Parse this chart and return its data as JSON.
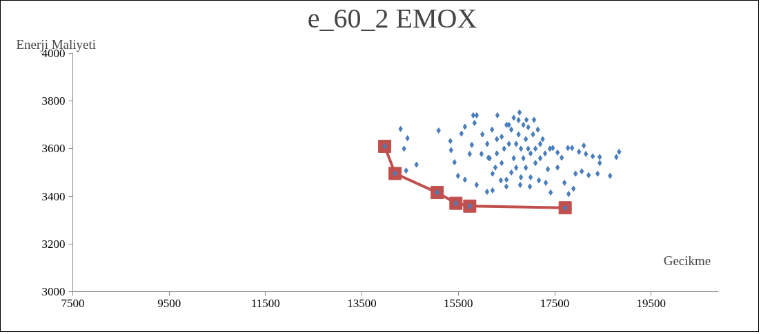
{
  "chart_data": {
    "type": "scatter",
    "title": "e_60_2  EMOX",
    "xlabel": "Gecikme",
    "ylabel": "Enerji Maliyeti",
    "xlim": [
      7500,
      20900
    ],
    "xticks": [
      7500,
      9500,
      11500,
      13500,
      15500,
      17500,
      19500
    ],
    "ylim": [
      3000,
      4000
    ],
    "yticks": [
      3000,
      3200,
      3400,
      3600,
      3800,
      4000
    ],
    "grid": false,
    "series": [
      {
        "type": "line",
        "color": "#c0504d",
        "marker": "square",
        "line_style": "solid",
        "x": [
          13972,
          14187,
          15062,
          15450,
          15737,
          17717
        ],
        "values": [
          3610,
          3496,
          3416,
          3371,
          3359,
          3352
        ]
      },
      {
        "type": "scatter",
        "color": "#4a7ebb",
        "marker": "diamond",
        "x": [
          13972,
          14187,
          15062,
          15450,
          15737,
          17717,
          14302,
          14445,
          14374,
          14632,
          14417,
          15091,
          15335,
          15350,
          15421,
          15493,
          15637,
          15880,
          16096,
          16210,
          15565,
          15637,
          15809,
          15880,
          15837,
          16311,
          16770,
          16914,
          17071,
          15780,
          15737,
          15981,
          16124,
          16268,
          16210,
          16382,
          16497,
          16784,
          16985,
          17172,
          17315,
          17416,
          17358,
          17559,
          17702,
          17788,
          17889,
          17932,
          18061,
          18204,
          18391,
          18649,
          18434,
          18434,
          18290,
          18104,
          18147,
          18779,
          18836,
          18004,
          17860,
          17774,
          17645,
          17559,
          17459,
          16400,
          16500,
          16600,
          16700,
          16800,
          16900,
          17000,
          17100,
          17200,
          16650,
          16750,
          16850,
          16950,
          17050,
          16550,
          16450,
          16300,
          16200,
          16100,
          16000,
          17300,
          17400,
          16700,
          16900,
          17100,
          16800,
          17000,
          16600,
          16400,
          16300,
          17200,
          16850,
          16750,
          16650,
          17150,
          16550,
          16950,
          17250,
          16150,
          16500
        ],
        "values": [
          3610,
          3496,
          3416,
          3371,
          3359,
          3352,
          3683,
          3644,
          3600,
          3533,
          3508,
          3676,
          3632,
          3594,
          3543,
          3486,
          3470,
          3448,
          3419,
          3425,
          3663,
          3692,
          3740,
          3740,
          3708,
          3740,
          3752,
          3721,
          3721,
          3616,
          3578,
          3578,
          3562,
          3521,
          3495,
          3467,
          3441,
          3448,
          3441,
          3467,
          3457,
          3416,
          3514,
          3521,
          3457,
          3410,
          3432,
          3495,
          3505,
          3489,
          3495,
          3486,
          3565,
          3540,
          3568,
          3613,
          3578,
          3565,
          3587,
          3587,
          3603,
          3603,
          3562,
          3584,
          3603,
          3650,
          3700,
          3680,
          3620,
          3600,
          3640,
          3580,
          3600,
          3620,
          3560,
          3660,
          3700,
          3600,
          3660,
          3620,
          3600,
          3640,
          3680,
          3620,
          3660,
          3580,
          3600,
          3520,
          3520,
          3540,
          3480,
          3480,
          3500,
          3540,
          3580,
          3560,
          3560,
          3720,
          3730,
          3680,
          3700,
          3690,
          3640,
          3560,
          3470
        ]
      }
    ]
  }
}
